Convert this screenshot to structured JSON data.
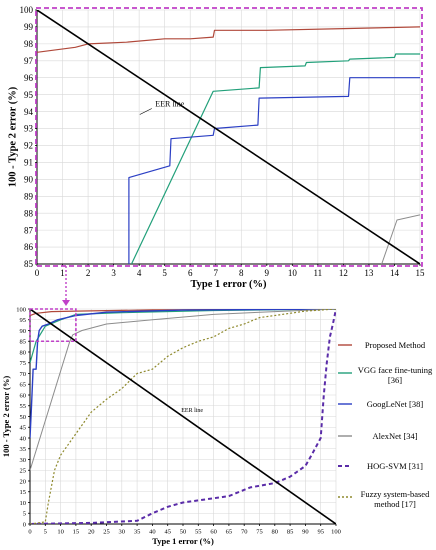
{
  "chart_data": [
    {
      "type": "line",
      "xlabel": "Type 1 error (%)",
      "ylabel": "100 - Type 2 error (%)",
      "xlim": [
        0,
        15
      ],
      "ylim": [
        85,
        100
      ],
      "xticks": [
        "0",
        "1",
        "2",
        "3",
        "4",
        "5",
        "6",
        "7",
        "8",
        "9",
        "10",
        "11",
        "12",
        "13",
        "14",
        "15"
      ],
      "yticks": [
        "85",
        "86",
        "87",
        "88",
        "89",
        "90",
        "91",
        "92",
        "93",
        "94",
        "95",
        "96",
        "97",
        "98",
        "99",
        "100"
      ],
      "grid": true,
      "annotation": "EER line",
      "series": [
        {
          "name": "Proposed Method",
          "color": "#b0483a",
          "dash": "solid",
          "width": 1.2,
          "points": [
            [
              0,
              97.5
            ],
            [
              1.5,
              97.8
            ],
            [
              2,
              98.0
            ],
            [
              3.5,
              98.1
            ],
            [
              5,
              98.3
            ],
            [
              6,
              98.3
            ],
            [
              6.9,
              98.4
            ],
            [
              6.95,
              98.8
            ],
            [
              9,
              98.8
            ],
            [
              12,
              98.9
            ],
            [
              15,
              99.0
            ]
          ]
        },
        {
          "name": "VGG face fine-tuning [36]",
          "color": "#22a07a",
          "dash": "solid",
          "width": 1.2,
          "points": [
            [
              3.7,
              85
            ],
            [
              6.9,
              95.2
            ],
            [
              8.7,
              95.4
            ],
            [
              8.75,
              96.6
            ],
            [
              10.5,
              96.7
            ],
            [
              10.55,
              96.9
            ],
            [
              12.2,
              97.0
            ],
            [
              12.25,
              97.1
            ],
            [
              14,
              97.2
            ],
            [
              14.05,
              97.4
            ],
            [
              15,
              97.4
            ]
          ]
        },
        {
          "name": "GoogLeNet [38]",
          "color": "#2b3fc4",
          "dash": "solid",
          "width": 1.2,
          "points": [
            [
              3.6,
              85
            ],
            [
              3.6,
              90.1
            ],
            [
              5.2,
              90.8
            ],
            [
              5.25,
              92.4
            ],
            [
              6.9,
              92.6
            ],
            [
              6.95,
              93.0
            ],
            [
              8.65,
              93.2
            ],
            [
              8.7,
              94.8
            ],
            [
              12.2,
              94.9
            ],
            [
              12.25,
              96.0
            ],
            [
              15,
              96.0
            ]
          ]
        },
        {
          "name": "AlexNet [34]",
          "color": "#8c8c8c",
          "dash": "solid",
          "width": 1.0,
          "points": [
            [
              13.5,
              85
            ],
            [
              14.1,
              87.6
            ],
            [
              15,
              87.9
            ]
          ]
        },
        {
          "name": "EER line",
          "color": "#000000",
          "dash": "solid",
          "width": 1.6,
          "points": [
            [
              0,
              100
            ],
            [
              15,
              85
            ]
          ]
        }
      ]
    },
    {
      "type": "line",
      "xlabel": "Type 1 error (%)",
      "ylabel": "100 - Type 2 error (%)",
      "xlim": [
        0,
        100
      ],
      "ylim": [
        0,
        100
      ],
      "xticks": [
        "0",
        "5",
        "10",
        "15",
        "20",
        "25",
        "30",
        "35",
        "40",
        "45",
        "50",
        "55",
        "60",
        "65",
        "70",
        "75",
        "80",
        "85",
        "90",
        "95",
        "100"
      ],
      "yticks": [
        "0",
        "5",
        "10",
        "15",
        "20",
        "25",
        "30",
        "35",
        "40",
        "45",
        "50",
        "55",
        "60",
        "65",
        "70",
        "75",
        "80",
        "85",
        "90",
        "95",
        "100"
      ],
      "grid": true,
      "legend": "right",
      "annotation": "EER line",
      "series": [
        {
          "name": "Proposed Method",
          "color": "#b0483a",
          "dash": "solid",
          "width": 1.2,
          "points": [
            [
              0,
              97
            ],
            [
              2,
              98
            ],
            [
              7,
              98.8
            ],
            [
              15,
              99
            ],
            [
              40,
              99.6
            ],
            [
              100,
              100
            ]
          ]
        },
        {
          "name": "VGG face fine-tuning [36]",
          "color": "#22a07a",
          "dash": "solid",
          "width": 1.2,
          "points": [
            [
              0,
              75
            ],
            [
              2,
              85
            ],
            [
              5,
              92
            ],
            [
              10,
              95
            ],
            [
              15,
              97.5
            ],
            [
              30,
              98.3
            ],
            [
              60,
              99.3
            ],
            [
              100,
              100
            ]
          ]
        },
        {
          "name": "GoogLeNet [38]",
          "color": "#2b3fc4",
          "dash": "solid",
          "width": 1.4,
          "points": [
            [
              0,
              40
            ],
            [
              0.5,
              55
            ],
            [
              1,
              72
            ],
            [
              2,
              72
            ],
            [
              2.5,
              85
            ],
            [
              3,
              90
            ],
            [
              4,
              92
            ],
            [
              6,
              93
            ],
            [
              9,
              95
            ],
            [
              15,
              97
            ],
            [
              25,
              98.5
            ],
            [
              50,
              99.5
            ],
            [
              100,
              100
            ]
          ]
        },
        {
          "name": "AlexNet [34]",
          "color": "#8c8c8c",
          "dash": "solid",
          "width": 1.0,
          "points": [
            [
              0,
              25
            ],
            [
              13,
              85
            ],
            [
              14,
              88
            ],
            [
              17,
              90
            ],
            [
              25,
              93
            ],
            [
              40,
              95
            ],
            [
              60,
              97.5
            ],
            [
              80,
              98.8
            ],
            [
              100,
              100
            ]
          ]
        },
        {
          "name": "HOG-SVM [31]",
          "color": "#5a2ca8",
          "dash": "4,3",
          "width": 2.0,
          "points": [
            [
              0,
              0
            ],
            [
              20,
              0.5
            ],
            [
              35,
              1.5
            ],
            [
              40,
              5
            ],
            [
              45,
              8
            ],
            [
              50,
              10
            ],
            [
              55,
              11
            ],
            [
              65,
              13
            ],
            [
              72,
              17
            ],
            [
              80,
              19
            ],
            [
              85,
              22
            ],
            [
              90,
              27
            ],
            [
              92,
              32
            ],
            [
              95,
              40
            ],
            [
              96,
              60
            ],
            [
              97,
              75
            ],
            [
              98,
              87
            ],
            [
              99,
              93
            ],
            [
              100,
              100
            ]
          ]
        },
        {
          "name": "Fuzzy system-based method [17]",
          "color": "#8f8a2e",
          "dash": "2,2",
          "width": 1.2,
          "points": [
            [
              0,
              0
            ],
            [
              5,
              1
            ],
            [
              6,
              10
            ],
            [
              8,
              25
            ],
            [
              10,
              32
            ],
            [
              15,
              42
            ],
            [
              20,
              52
            ],
            [
              25,
              58
            ],
            [
              30,
              63
            ],
            [
              35,
              70
            ],
            [
              40,
              72
            ],
            [
              45,
              78
            ],
            [
              50,
              82
            ],
            [
              55,
              85
            ],
            [
              60,
              87
            ],
            [
              65,
              91
            ],
            [
              70,
              93
            ],
            [
              75,
              96
            ],
            [
              80,
              97
            ],
            [
              90,
              99
            ],
            [
              100,
              100
            ]
          ]
        },
        {
          "name": "EER line",
          "color": "#000000",
          "dash": "solid",
          "width": 1.6,
          "points": [
            [
              0,
              100
            ],
            [
              100,
              0
            ]
          ]
        }
      ]
    }
  ],
  "legend": [
    {
      "label": "Proposed Method",
      "color": "#b0483a",
      "dash": "solid"
    },
    {
      "label": "VGG face fine-tuning [36]",
      "color": "#22a07a",
      "dash": "solid"
    },
    {
      "label": "GoogLeNet [38]",
      "color": "#2b3fc4",
      "dash": "solid"
    },
    {
      "label": "AlexNet [34]",
      "color": "#8c8c8c",
      "dash": "solid"
    },
    {
      "label": "HOG-SVM [31]",
      "color": "#5a2ca8",
      "dash": "dashed"
    },
    {
      "label": "Fuzzy system-based method [17]",
      "color": "#8f8a2e",
      "dash": "dotted"
    }
  ],
  "highlight_color": "#c040c8"
}
